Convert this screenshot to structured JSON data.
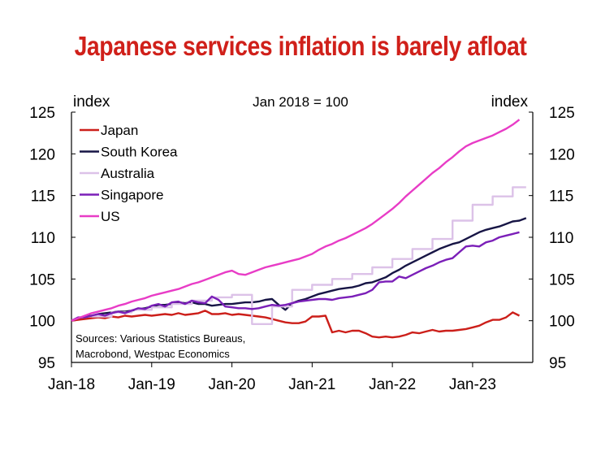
{
  "chart_data": {
    "type": "line",
    "title": "Japanese services inflation is barely afloat",
    "note": "Jan 2018 = 100",
    "ylabel_left": "index",
    "ylabel_right": "index",
    "ylim": [
      95,
      125
    ],
    "yticks": [
      "95",
      "100",
      "105",
      "110",
      "115",
      "120",
      "125"
    ],
    "xlim": [
      0,
      69
    ],
    "xticks": [
      {
        "label": "Jan-18",
        "x": 0
      },
      {
        "label": "Jan-19",
        "x": 12
      },
      {
        "label": "Jan-20",
        "x": 24
      },
      {
        "label": "Jan-21",
        "x": 36
      },
      {
        "label": "Jan-22",
        "x": 48
      },
      {
        "label": "Jan-23",
        "x": 60
      }
    ],
    "source": [
      "Sources: Various Statistics Bureaus,",
      "Macrobond, Westpac Economics"
    ],
    "legend_position": "top-left",
    "series": [
      {
        "name": "Japan",
        "color": "#cc1f1a",
        "step": false,
        "values": [
          100,
          100.1,
          100.2,
          100.3,
          100.4,
          100.3,
          100.5,
          100.4,
          100.6,
          100.5,
          100.6,
          100.7,
          100.6,
          100.7,
          100.8,
          100.7,
          100.9,
          100.7,
          100.8,
          100.9,
          101.2,
          100.8,
          100.8,
          100.9,
          100.7,
          100.8,
          100.7,
          100.6,
          100.5,
          100.4,
          100.2,
          100,
          99.8,
          99.7,
          99.7,
          99.9,
          100.5,
          100.5,
          100.6,
          98.6,
          98.8,
          98.6,
          98.8,
          98.8,
          98.5,
          98.1,
          98,
          98.1,
          98,
          98.1,
          98.3,
          98.6,
          98.5,
          98.7,
          98.9,
          98.7,
          98.8,
          98.8,
          98.9,
          99,
          99.2,
          99.4,
          99.8,
          100.1,
          100.1,
          100.4,
          101,
          100.6
        ],
        "x_start": 0
      },
      {
        "name": "South Korea",
        "color": "#171545",
        "step": false,
        "values": [
          100,
          100.3,
          100.5,
          100.6,
          100.8,
          100.9,
          101,
          101.1,
          101.1,
          101.2,
          101.4,
          101.5,
          101.7,
          101.9,
          101.9,
          102,
          102.2,
          102.1,
          102.2,
          102,
          102,
          101.8,
          101.9,
          102,
          102,
          102.1,
          102.2,
          102.2,
          102.3,
          102.5,
          102.6,
          101.9,
          101.3,
          102.1,
          102.4,
          102.6,
          102.9,
          103.2,
          103.4,
          103.6,
          103.8,
          103.9,
          104,
          104.2,
          104.5,
          104.6,
          104.9,
          105.2,
          105.7,
          106.1,
          106.6,
          107,
          107.4,
          107.8,
          108.2,
          108.6,
          108.9,
          109.2,
          109.4,
          109.8,
          110.2,
          110.6,
          110.9,
          111.1,
          111.3,
          111.6,
          111.9,
          112,
          112.3
        ],
        "x_start": 0
      },
      {
        "name": "Australia",
        "color": "#dcc2e8",
        "step": true,
        "values": [
          100.5,
          100.5,
          100.5,
          101,
          101,
          101,
          101.3,
          101.3,
          101.3,
          101.6,
          101.6,
          101.6,
          102,
          102,
          102,
          102.4,
          102.4,
          102.4,
          102.8,
          102.8,
          102.8,
          103.1,
          103.1,
          103.1,
          99.6,
          99.6,
          99.6,
          101.7,
          101.7,
          101.7,
          103.7,
          103.7,
          103.7,
          104.3,
          104.3,
          104.3,
          105,
          105,
          105,
          105.6,
          105.6,
          105.6,
          106.4,
          106.4,
          106.4,
          107.4,
          107.4,
          107.4,
          108.6,
          108.6,
          108.6,
          109.8,
          109.8,
          109.8,
          112,
          112,
          112,
          113.9,
          113.9,
          113.9,
          114.9,
          114.9,
          114.9,
          116,
          116,
          116
        ],
        "x_start": 3
      },
      {
        "name": "Singapore",
        "color": "#7b1fb8",
        "step": false,
        "values": [
          100,
          100.4,
          100.4,
          100.6,
          100.8,
          100.6,
          100.9,
          101.1,
          100.9,
          101.2,
          101.5,
          101.4,
          101.8,
          102,
          101.7,
          102.2,
          102.3,
          102,
          102.4,
          102.2,
          102.1,
          102.9,
          102.5,
          101.7,
          101.6,
          101.5,
          101.5,
          101.4,
          101.5,
          101.7,
          101.9,
          101.8,
          101.9,
          102.1,
          102.3,
          102.4,
          102.5,
          102.6,
          102.6,
          102.5,
          102.7,
          102.8,
          102.9,
          103.1,
          103.3,
          103.7,
          104.6,
          104.7,
          104.7,
          105.3,
          105.1,
          105.5,
          105.9,
          106.3,
          106.6,
          107,
          107.3,
          107.5,
          108.2,
          108.9,
          109,
          108.9,
          109.4,
          109.6,
          110,
          110.2,
          110.4,
          110.6
        ],
        "x_start": 0
      },
      {
        "name": "US",
        "color": "#e83cc6",
        "step": false,
        "values": [
          100,
          100.3,
          100.6,
          100.9,
          101.1,
          101.3,
          101.5,
          101.8,
          102,
          102.3,
          102.5,
          102.7,
          103,
          103.2,
          103.4,
          103.6,
          103.8,
          104.1,
          104.4,
          104.6,
          104.9,
          105.2,
          105.5,
          105.8,
          106,
          105.6,
          105.5,
          105.8,
          106.1,
          106.4,
          106.6,
          106.8,
          107,
          107.2,
          107.4,
          107.7,
          108,
          108.5,
          108.9,
          109.2,
          109.6,
          109.9,
          110.3,
          110.7,
          111.1,
          111.6,
          112.2,
          112.8,
          113.4,
          114.1,
          114.9,
          115.6,
          116.3,
          117,
          117.7,
          118.3,
          119,
          119.6,
          120.3,
          120.9,
          121.3,
          121.6,
          121.9,
          122.2,
          122.6,
          123,
          123.5,
          124.1
        ],
        "x_start": 0
      }
    ]
  }
}
